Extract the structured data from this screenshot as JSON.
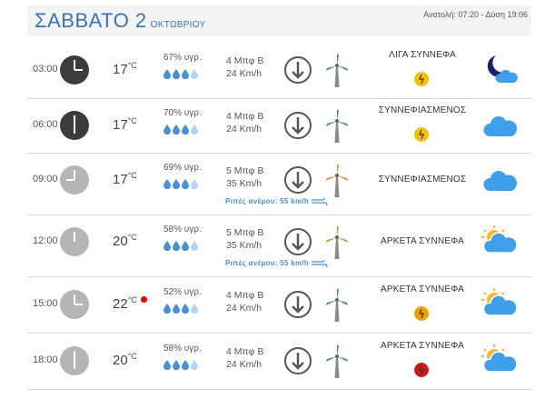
{
  "header": {
    "day": "ΣΑΒΒΑΤΟ 2",
    "month": "ΟΚΤΩΒΡΙΟΥ",
    "sun": "Ανατολή: 07:20 - Δύση 19:06"
  },
  "rows": [
    {
      "time": "03:00",
      "temp": "17",
      "temp_unit": "°C",
      "humidity": "67% υγρ.",
      "drops_filled": 3,
      "wind_bf": "4 Μπφ Β",
      "wind_kmh": "24 Km/h",
      "gust": "",
      "condition": "ΛΙΓΑ ΣΥΝΝΕΦΑ",
      "warn_color": "#f2c200",
      "icon": "moon-cloud-icon",
      "clock": "dark-clock-icon",
      "hot": false,
      "mill_color": "#3f9a5a"
    },
    {
      "time": "06:00",
      "temp": "17",
      "temp_unit": "°C",
      "humidity": "70% υγρ.",
      "drops_filled": 3,
      "wind_bf": "4 Μπφ Β",
      "wind_kmh": "24 Km/h",
      "gust": "",
      "condition": "ΣΥΝΝΕΦΙΑΣΜΕΝΟΣ",
      "warn_color": "#f2c200",
      "icon": "cloud-icon",
      "clock": "dark-clock-icon",
      "hot": false,
      "mill_color": "#3f9a5a"
    },
    {
      "time": "09:00",
      "temp": "17",
      "temp_unit": "°C",
      "humidity": "69% υγρ.",
      "drops_filled": 3,
      "wind_bf": "5 Μπφ Β",
      "wind_kmh": "35 Km/h",
      "gust": "Ριπές ανέμου: 55 km/h",
      "condition": "ΣΥΝΝΕΦΙΑΣΜΕΝΟΣ",
      "warn_color": "",
      "icon": "cloud-icon",
      "clock": "light-clock-icon",
      "hot": false,
      "mill_color": "#e0902a"
    },
    {
      "time": "12:00",
      "temp": "20",
      "temp_unit": "°C",
      "humidity": "58% υγρ.",
      "drops_filled": 3,
      "wind_bf": "5 Μπφ Β",
      "wind_kmh": "35 Km/h",
      "gust": "Ριπές ανέμου: 55 km/h",
      "condition": "ΑΡΚΕΤΑ ΣΥΝΝΕΦΑ",
      "warn_color": "",
      "icon": "sun-cloud-icon",
      "clock": "light-clock-icon",
      "hot": false,
      "mill_color": "#e0902a"
    },
    {
      "time": "15:00",
      "temp": "22",
      "temp_unit": "°C",
      "humidity": "52% υγρ.",
      "drops_filled": 3,
      "wind_bf": "4 Μπφ Β",
      "wind_kmh": "24 Km/h",
      "gust": "",
      "condition": "ΑΡΚΕΤΑ ΣΥΝΝΕΦΑ",
      "warn_color": "#f2a000",
      "icon": "sun-cloud-icon",
      "clock": "light-clock-icon",
      "hot": true,
      "mill_color": "#3f9a5a"
    },
    {
      "time": "18:00",
      "temp": "20",
      "temp_unit": "°C",
      "humidity": "58% υγρ.",
      "drops_filled": 3,
      "wind_bf": "4 Μπφ Β",
      "wind_kmh": "24 Km/h",
      "gust": "",
      "condition": "ΑΡΚΕΤΑ ΣΥΝΝΕΦΑ",
      "warn_color": "#d01818",
      "icon": "sun-cloud-icon",
      "clock": "light-clock-icon",
      "hot": false,
      "mill_color": "#3f9a5a"
    }
  ]
}
